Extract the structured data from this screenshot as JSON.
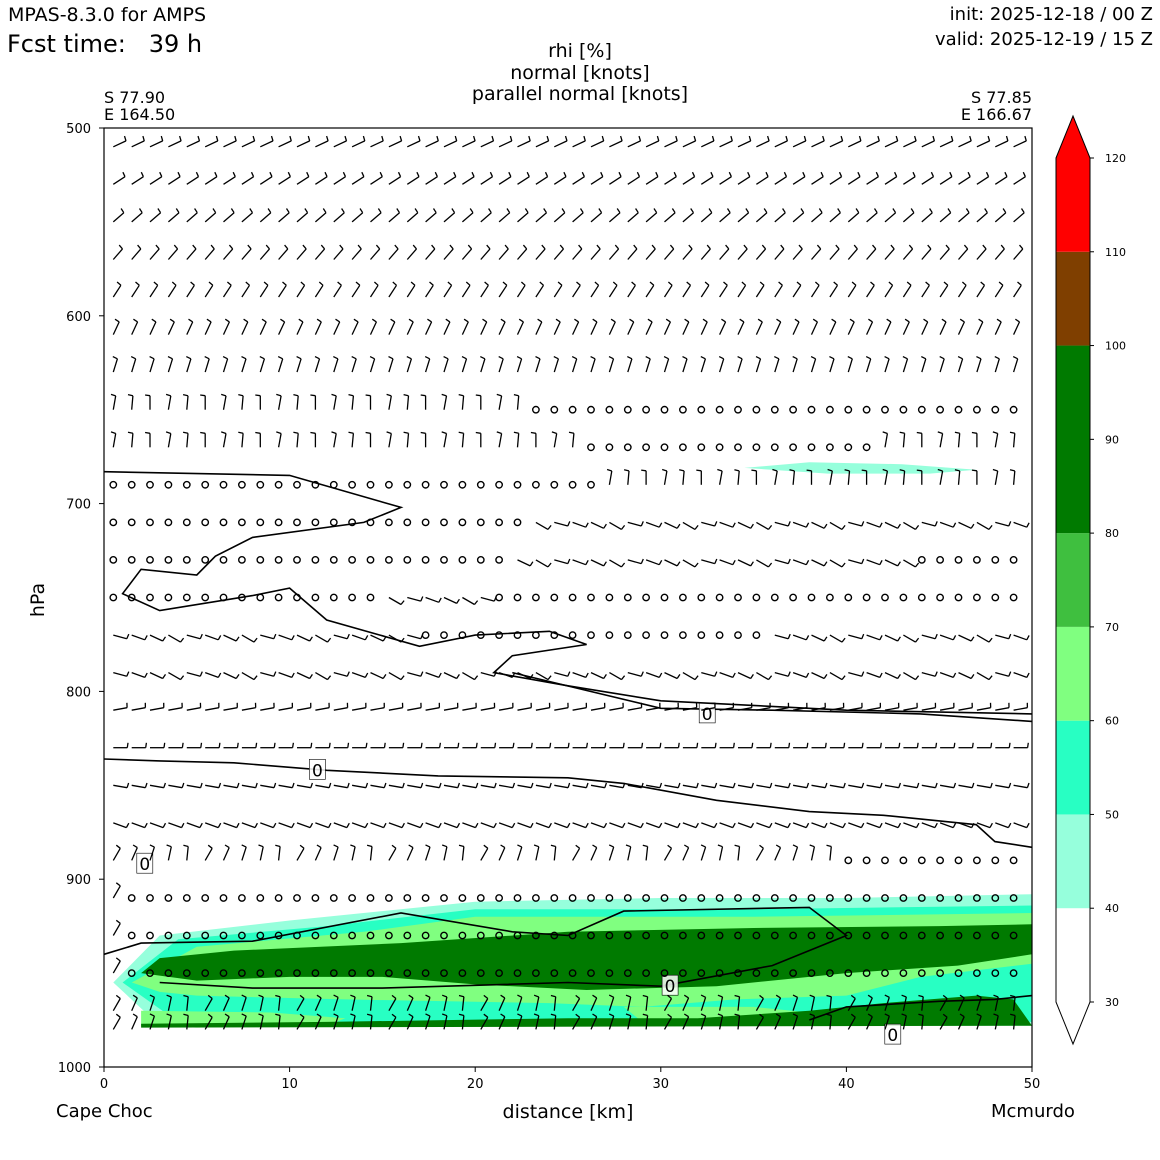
{
  "header": {
    "model": "MPAS-8.3.0 for AMPS",
    "fcst_label": "Fcst time:",
    "fcst_value": "39 h",
    "init": "init: 2025-12-18 / 00 Z",
    "valid": "valid: 2025-12-19 / 15 Z"
  },
  "titles": [
    "rhi [%]",
    "normal [knots]",
    "parallel normal [knots]"
  ],
  "endpoints": {
    "start_lat": "S 77.90",
    "start_lon": "E 164.50",
    "end_lat": "S 77.85",
    "end_lon": "E 166.67",
    "start_name": "Cape Choc",
    "end_name": "Mcmurdo"
  },
  "chart_data": {
    "type": "heatmap",
    "title": "rhi [%] / normal [knots] / parallel normal [knots]",
    "xlabel": "distance [km]",
    "ylabel": "hPa",
    "xlim": [
      0,
      50
    ],
    "ylim": [
      1000,
      500
    ],
    "x_ticks": [
      "0",
      "10",
      "20",
      "30",
      "40",
      "50"
    ],
    "y_ticks": [
      "500",
      "600",
      "700",
      "800",
      "900",
      "1000"
    ],
    "colorbar": {
      "levels": [
        "30",
        "40",
        "50",
        "60",
        "70",
        "80",
        "90",
        "100",
        "110",
        "120"
      ],
      "bands": [
        {
          "from": 30,
          "to": 40,
          "color": "#ffffff"
        },
        {
          "from": 40,
          "to": 50,
          "color": "#96ffdc"
        },
        {
          "from": 50,
          "to": 60,
          "color": "#28ffc3"
        },
        {
          "from": 60,
          "to": 70,
          "color": "#80ff80"
        },
        {
          "from": 70,
          "to": 80,
          "color": "#3fbf3f"
        },
        {
          "from": 80,
          "to": 100,
          "color": "#007a00"
        },
        {
          "from": 100,
          "to": 110,
          "color": "#7f3f00"
        },
        {
          "from": 110,
          "to": 120,
          "color": "#ff0000"
        }
      ]
    },
    "rhi_regions": [
      {
        "level": "40-50",
        "color": "#96ffdc",
        "points": [
          [
            0.5,
            955
          ],
          [
            3,
            930
          ],
          [
            10,
            922
          ],
          [
            20,
            912
          ],
          [
            30,
            910
          ],
          [
            40,
            910
          ],
          [
            50,
            908
          ],
          [
            50,
            978
          ],
          [
            3,
            978
          ]
        ]
      },
      {
        "level": "40-50",
        "color": "#96ffdc",
        "points": [
          [
            34.5,
            681
          ],
          [
            38,
            678
          ],
          [
            43,
            679
          ],
          [
            47,
            682
          ],
          [
            44.5,
            684
          ],
          [
            39,
            684
          ]
        ]
      },
      {
        "level": "50-60",
        "color": "#28ffc3",
        "points": [
          [
            1,
            955
          ],
          [
            4,
            932
          ],
          [
            12,
            925
          ],
          [
            20,
            916
          ],
          [
            35,
            916
          ],
          [
            50,
            914
          ],
          [
            50,
            976
          ],
          [
            4,
            976
          ]
        ]
      },
      {
        "level": "60-70",
        "color": "#80ff80",
        "points": [
          [
            1.5,
            955
          ],
          [
            5,
            936
          ],
          [
            14,
            928
          ],
          [
            20,
            920
          ],
          [
            35,
            920
          ],
          [
            50,
            918
          ],
          [
            50,
            945
          ],
          [
            44,
            952
          ],
          [
            40,
            962
          ],
          [
            34,
            964
          ],
          [
            29,
            968
          ],
          [
            24,
            966
          ],
          [
            13,
            964
          ],
          [
            5,
            962
          ],
          [
            3,
            960
          ]
        ]
      },
      {
        "level": "60-70",
        "color": "#80ff80",
        "points": [
          [
            2,
            970
          ],
          [
            9,
            971
          ],
          [
            13,
            974
          ],
          [
            12,
            978
          ],
          [
            5,
            979
          ],
          [
            2,
            978
          ]
        ]
      },
      {
        "level": "60-70",
        "color": "#80ff80",
        "points": [
          [
            28,
            968
          ],
          [
            35,
            968
          ],
          [
            40,
            973
          ],
          [
            34,
            976
          ],
          [
            29,
            976
          ]
        ]
      },
      {
        "level": "80-100",
        "color": "#007a00",
        "points": [
          [
            2,
            950
          ],
          [
            3,
            942
          ],
          [
            7,
            938
          ],
          [
            16,
            934
          ],
          [
            25,
            928
          ],
          [
            35,
            926
          ],
          [
            45,
            925
          ],
          [
            50,
            924
          ],
          [
            50,
            940
          ],
          [
            46,
            946
          ],
          [
            40,
            950
          ],
          [
            33,
            957
          ],
          [
            26,
            959
          ],
          [
            20,
            956
          ],
          [
            15,
            952
          ],
          [
            10,
            952
          ],
          [
            5,
            954
          ]
        ]
      },
      {
        "level": "80-100",
        "color": "#007a00",
        "points": [
          [
            2,
            977
          ],
          [
            12,
            976
          ],
          [
            25,
            974
          ],
          [
            32,
            974
          ],
          [
            38,
            970
          ],
          [
            42,
            966
          ],
          [
            47,
            962
          ],
          [
            49,
            964
          ],
          [
            50,
            978
          ],
          [
            2,
            979
          ]
        ]
      }
    ],
    "contours_zero": [
      {
        "label": "0",
        "label_at": [
          11.5,
          842
        ],
        "points": [
          [
            0,
            836
          ],
          [
            3,
            837
          ],
          [
            7,
            838
          ],
          [
            12,
            842
          ],
          [
            18,
            845
          ],
          [
            25,
            846
          ],
          [
            28,
            849
          ],
          [
            33,
            858
          ],
          [
            38,
            864
          ],
          [
            42,
            866
          ],
          [
            47,
            871
          ],
          [
            48,
            880
          ],
          [
            50,
            883
          ]
        ]
      },
      {
        "label": "0",
        "label_at": [
          32.5,
          812
        ],
        "points": [
          [
            22,
            790
          ],
          [
            30,
            809
          ],
          [
            36,
            810
          ],
          [
            44,
            812
          ],
          [
            50,
            816
          ]
        ]
      },
      {
        "label": "0",
        "label_at": [
          30.5,
          957
        ],
        "points": [
          [
            0,
            940
          ],
          [
            2,
            934
          ],
          [
            8,
            933
          ],
          [
            16,
            918
          ],
          [
            22,
            928
          ],
          [
            25,
            930
          ],
          [
            28,
            917
          ],
          [
            38,
            915
          ],
          [
            40,
            930
          ],
          [
            36,
            946
          ],
          [
            30,
            957
          ],
          [
            25,
            955
          ],
          [
            15,
            958
          ],
          [
            8,
            958
          ],
          [
            3,
            955
          ]
        ]
      },
      {
        "label": "0",
        "label_at": [
          42.5,
          983
        ],
        "points": [
          [
            38,
            975
          ],
          [
            40,
            968
          ],
          [
            45,
            965
          ],
          [
            48,
            964
          ],
          [
            50,
            962
          ]
        ]
      },
      {
        "label": "0",
        "label_at": [
          2.2,
          892
        ],
        "points": []
      },
      {
        "label": "",
        "label_at": null,
        "points": [
          [
            0,
            683
          ],
          [
            10,
            685
          ],
          [
            16,
            702
          ],
          [
            14,
            710
          ],
          [
            8,
            718
          ],
          [
            6,
            728
          ],
          [
            5,
            738
          ],
          [
            2,
            735
          ],
          [
            1,
            748
          ],
          [
            3,
            757
          ],
          [
            8,
            749
          ],
          [
            10,
            745
          ],
          [
            12,
            762
          ],
          [
            17,
            776
          ],
          [
            20,
            770
          ],
          [
            24,
            768
          ],
          [
            26,
            775
          ],
          [
            22,
            781
          ],
          [
            21,
            790
          ],
          [
            25,
            797
          ],
          [
            30,
            805
          ],
          [
            40,
            810
          ],
          [
            50,
            812
          ]
        ]
      }
    ],
    "wind_rows_hPa": [
      510,
      530,
      550,
      570,
      590,
      610,
      630,
      650,
      670,
      690,
      710,
      730,
      750,
      770,
      790,
      810,
      830,
      850,
      870,
      890,
      910,
      930,
      950,
      970,
      980
    ]
  }
}
